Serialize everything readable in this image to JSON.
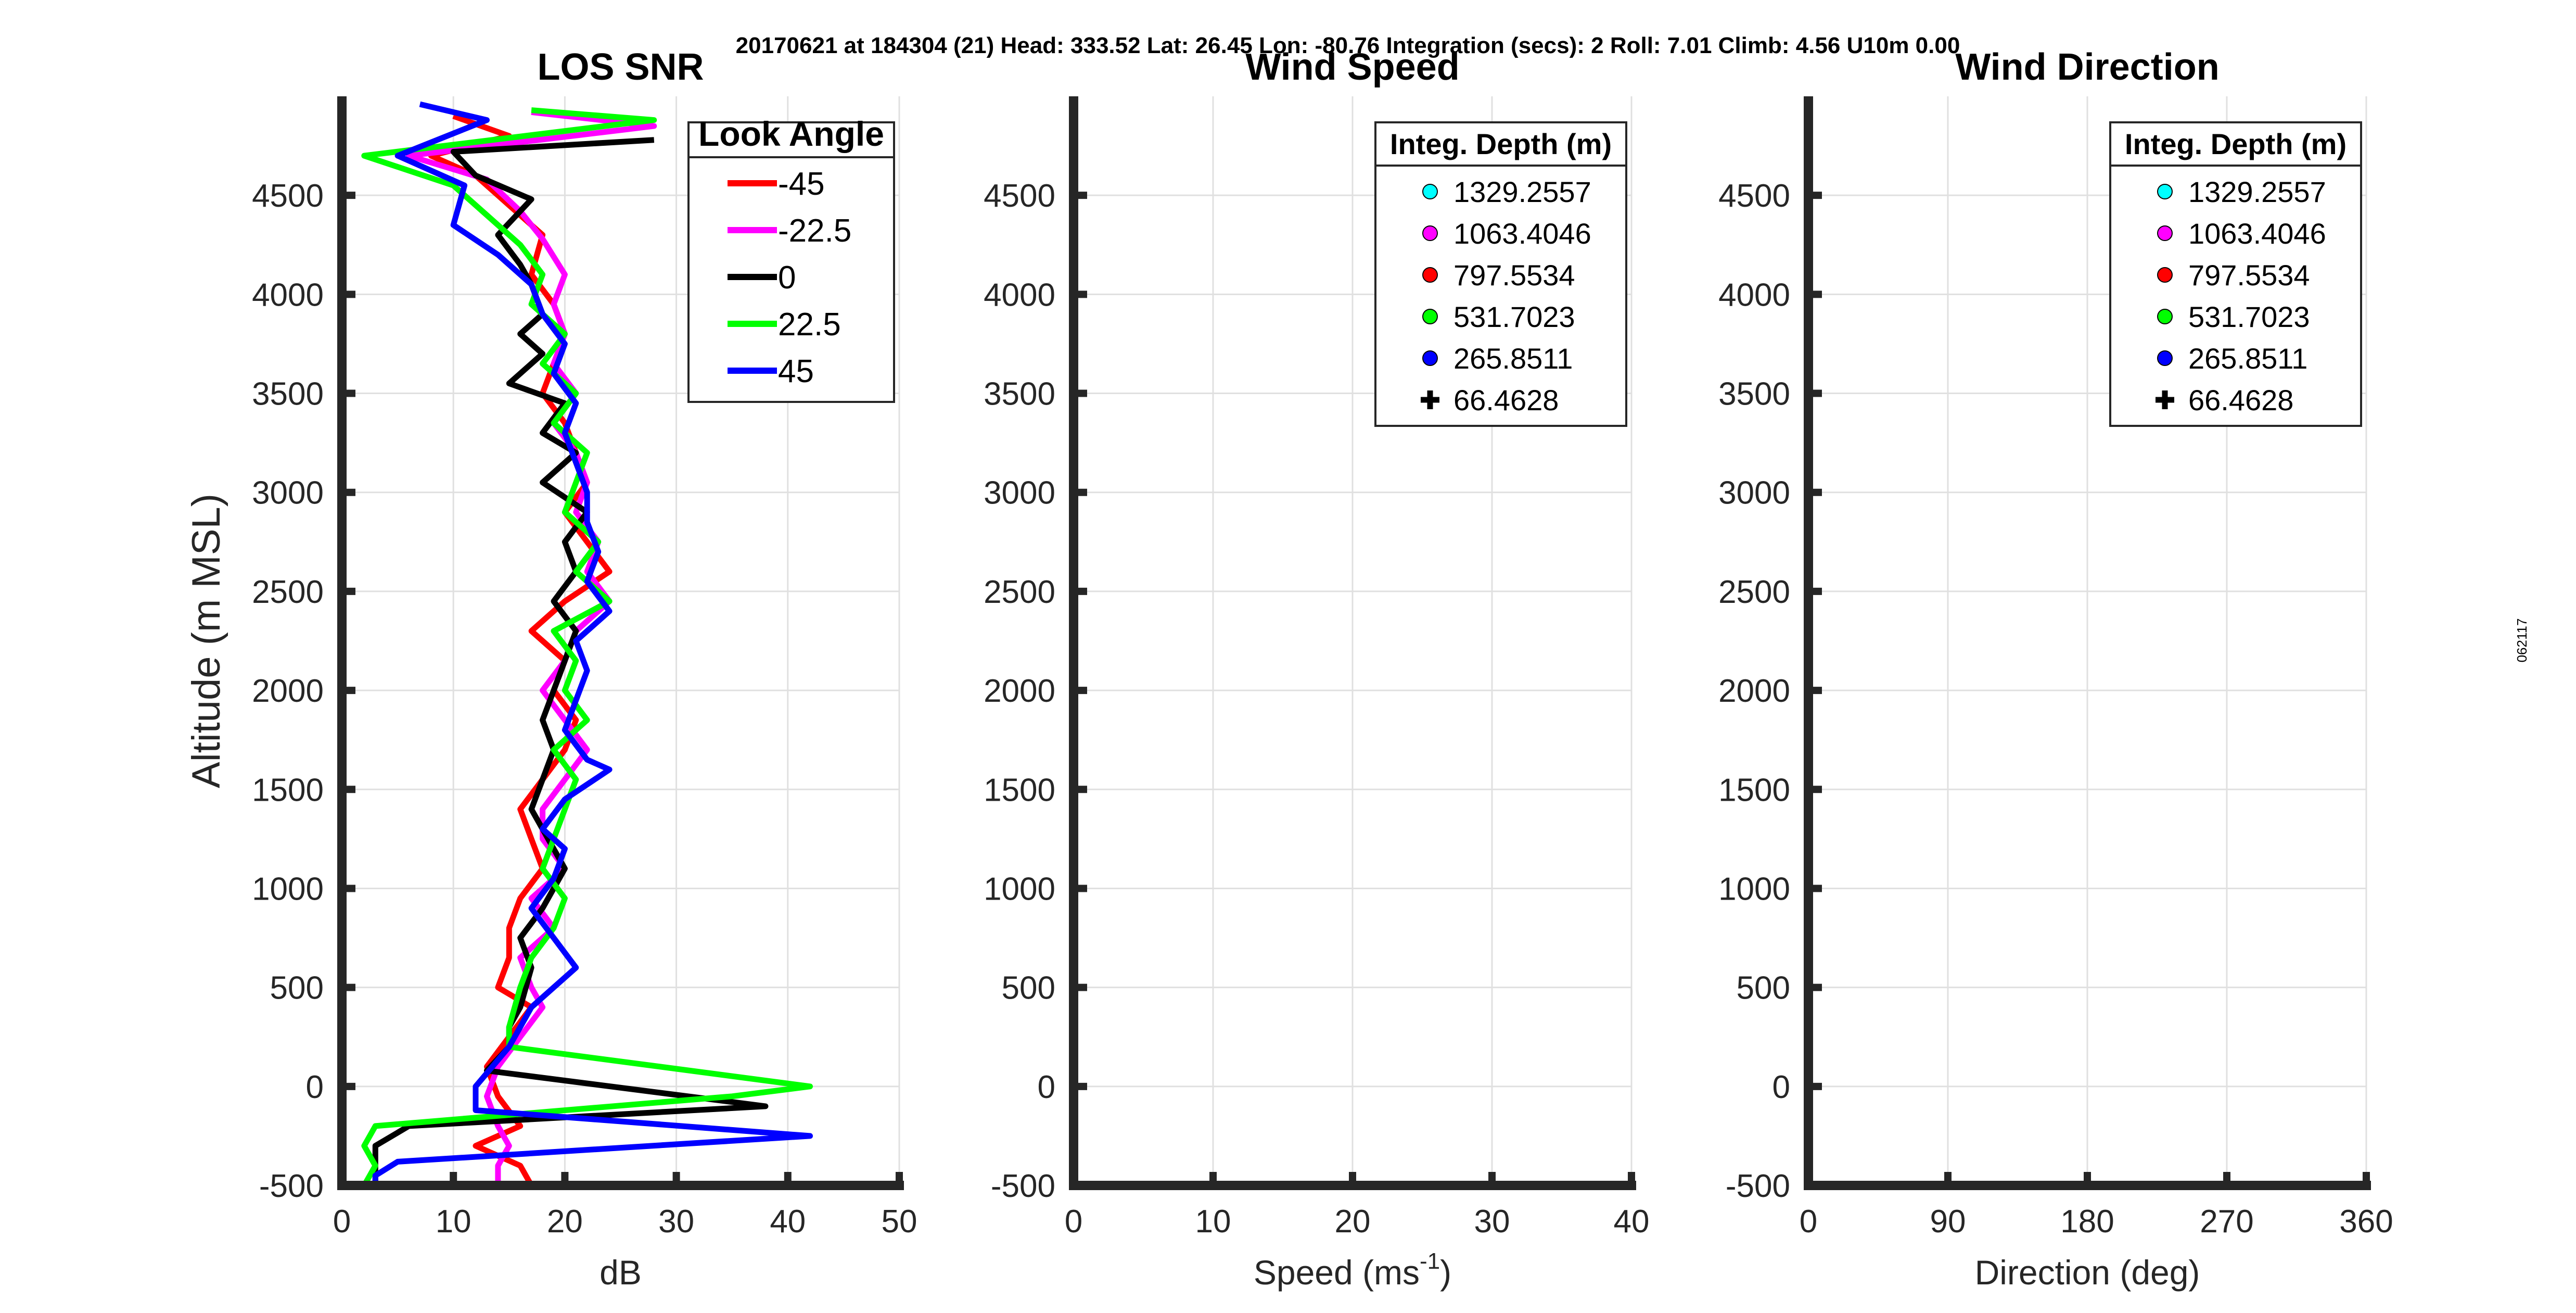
{
  "header": {
    "title": "20170621 at 184304 (21)  Head: 333.52  Lat: 26.45  Lon: -80.76  Integration (secs): 2  Roll: 7.01  Climb: 4.56  U10m 0.00",
    "side_label": "062117"
  },
  "chart_data": [
    {
      "type": "line",
      "title": "LOS SNR",
      "xlabel": "dB",
      "ylabel": "Altitude (m MSL)",
      "xlim": [
        0,
        50
      ],
      "ylim": [
        -500,
        5000
      ],
      "xticks": [
        0,
        10,
        20,
        30,
        40,
        50
      ],
      "yticks": [
        -500,
        0,
        500,
        1000,
        1500,
        2000,
        2500,
        3000,
        3500,
        4000,
        4500
      ],
      "grid": true,
      "legend": {
        "title": "Look Angle",
        "position": "top-right"
      },
      "series": [
        {
          "name": "-45",
          "color": "#ff0000",
          "x": [
            10,
            15,
            8,
            12,
            15,
            18,
            17,
            19,
            20,
            19,
            18,
            20,
            21,
            22,
            20,
            22,
            24,
            20,
            17,
            20,
            19,
            21,
            20,
            18,
            16,
            17,
            18,
            16,
            15,
            15,
            14,
            17,
            15,
            13,
            14,
            16,
            12,
            16,
            17
          ],
          "y": [
            4900,
            4800,
            4700,
            4600,
            4450,
            4300,
            4100,
            3950,
            3800,
            3650,
            3500,
            3350,
            3200,
            3050,
            2900,
            2750,
            2600,
            2450,
            2300,
            2150,
            2000,
            1850,
            1700,
            1550,
            1400,
            1250,
            1100,
            950,
            800,
            650,
            500,
            400,
            250,
            100,
            -50,
            -200,
            -300,
            -400,
            -500
          ]
        },
        {
          "name": "-22.5",
          "color": "#ff00ff",
          "x": [
            17,
            28,
            6,
            13,
            16,
            18,
            20,
            19,
            20,
            19,
            21,
            19,
            21,
            22,
            21,
            23,
            22,
            24,
            21,
            20,
            18,
            20,
            22,
            20,
            18,
            18,
            20,
            17,
            19,
            16,
            17,
            18,
            16,
            14,
            13,
            14,
            15,
            14,
            14
          ],
          "y": [
            4920,
            4850,
            4700,
            4580,
            4420,
            4280,
            4100,
            3950,
            3800,
            3650,
            3500,
            3350,
            3200,
            3050,
            2900,
            2750,
            2600,
            2450,
            2300,
            2150,
            2000,
            1850,
            1700,
            1550,
            1400,
            1250,
            1100,
            950,
            800,
            650,
            500,
            400,
            250,
            100,
            -50,
            -200,
            -300,
            -400,
            -500
          ]
        },
        {
          "name": "0",
          "color": "#000000",
          "x": [
            28,
            10,
            12,
            17,
            14,
            16,
            17,
            18,
            16,
            18,
            15,
            20,
            18,
            21,
            18,
            22,
            20,
            21,
            19,
            21,
            20,
            19,
            18,
            19,
            18,
            17,
            20,
            18,
            16,
            17,
            16,
            15,
            15,
            13,
            38,
            6,
            3,
            3,
            3
          ],
          "y": [
            4780,
            4720,
            4600,
            4480,
            4300,
            4150,
            4050,
            3900,
            3800,
            3700,
            3550,
            3450,
            3300,
            3200,
            3050,
            2900,
            2750,
            2600,
            2450,
            2300,
            2150,
            2000,
            1850,
            1700,
            1550,
            1400,
            1100,
            900,
            750,
            600,
            400,
            300,
            200,
            80,
            -100,
            -200,
            -300,
            -400,
            -500
          ]
        },
        {
          "name": "22.5",
          "color": "#00ff00",
          "x": [
            17,
            28,
            2,
            10,
            13,
            16,
            18,
            17,
            20,
            18,
            21,
            19,
            22,
            21,
            20,
            23,
            21,
            24,
            19,
            21,
            20,
            22,
            19,
            21,
            20,
            19,
            18,
            20,
            19,
            17,
            16,
            15,
            15,
            42,
            35,
            3,
            2,
            3,
            2
          ],
          "y": [
            4930,
            4880,
            4700,
            4550,
            4400,
            4250,
            4100,
            3950,
            3800,
            3650,
            3500,
            3350,
            3200,
            3050,
            2900,
            2750,
            2600,
            2450,
            2300,
            2150,
            2000,
            1850,
            1700,
            1550,
            1400,
            1250,
            1100,
            950,
            800,
            650,
            500,
            300,
            200,
            0,
            -50,
            -200,
            -300,
            -400,
            -500
          ]
        },
        {
          "name": "45",
          "color": "#0000ff",
          "x": [
            7,
            13,
            5,
            11,
            10,
            14,
            17,
            18,
            20,
            19,
            21,
            20,
            21,
            22,
            22,
            23,
            22,
            24,
            21,
            22,
            21,
            20,
            22,
            24,
            20,
            18,
            20,
            19,
            17,
            19,
            21,
            17,
            15,
            12,
            12,
            42,
            5,
            3,
            3
          ],
          "y": [
            4960,
            4880,
            4700,
            4550,
            4350,
            4200,
            4050,
            3900,
            3750,
            3600,
            3450,
            3300,
            3150,
            3000,
            2850,
            2700,
            2550,
            2400,
            2250,
            2100,
            1950,
            1800,
            1650,
            1600,
            1450,
            1300,
            1200,
            1050,
            900,
            750,
            600,
            400,
            200,
            0,
            -120,
            -250,
            -380,
            -450,
            -500
          ]
        }
      ]
    },
    {
      "type": "scatter",
      "title": "Wind Speed",
      "xlabel": "Speed (ms",
      "xlabel_sup": "-1",
      "xlabel_tail": ")",
      "xlim": [
        0,
        40
      ],
      "ylim": [
        -500,
        5000
      ],
      "xticks": [
        0,
        10,
        20,
        30,
        40
      ],
      "yticks": [
        -500,
        0,
        500,
        1000,
        1500,
        2000,
        2500,
        3000,
        3500,
        4000,
        4500
      ],
      "grid": true,
      "legend": {
        "title": "Integ. Depth (m)",
        "position": "top-right"
      },
      "series": [
        {
          "name": "1329.2557",
          "color": "#00ffff",
          "marker": "circle",
          "points": []
        },
        {
          "name": "1063.4046",
          "color": "#ff00ff",
          "marker": "circle",
          "points": []
        },
        {
          "name": "797.5534",
          "color": "#ff0000",
          "marker": "circle",
          "points": []
        },
        {
          "name": "531.7023",
          "color": "#00ff00",
          "marker": "circle",
          "points": []
        },
        {
          "name": "265.8511",
          "color": "#0000ff",
          "marker": "circle",
          "points": []
        },
        {
          "name": "66.4628",
          "color": "#000000",
          "marker": "plus",
          "points": []
        }
      ]
    },
    {
      "type": "scatter",
      "title": "Wind Direction",
      "xlabel": "Direction (deg)",
      "xlim": [
        0,
        360
      ],
      "ylim": [
        -500,
        5000
      ],
      "xticks": [
        0,
        90,
        180,
        270,
        360
      ],
      "yticks": [
        -500,
        0,
        500,
        1000,
        1500,
        2000,
        2500,
        3000,
        3500,
        4000,
        4500
      ],
      "grid": true,
      "legend": {
        "title": "Integ. Depth (m)",
        "position": "top-right"
      },
      "series": [
        {
          "name": "1329.2557",
          "color": "#00ffff",
          "marker": "circle",
          "points": []
        },
        {
          "name": "1063.4046",
          "color": "#ff00ff",
          "marker": "circle",
          "points": []
        },
        {
          "name": "797.5534",
          "color": "#ff0000",
          "marker": "circle",
          "points": []
        },
        {
          "name": "531.7023",
          "color": "#00ff00",
          "marker": "circle",
          "points": []
        },
        {
          "name": "265.8511",
          "color": "#0000ff",
          "marker": "circle",
          "points": []
        },
        {
          "name": "66.4628",
          "color": "#000000",
          "marker": "plus",
          "points": []
        }
      ]
    }
  ]
}
